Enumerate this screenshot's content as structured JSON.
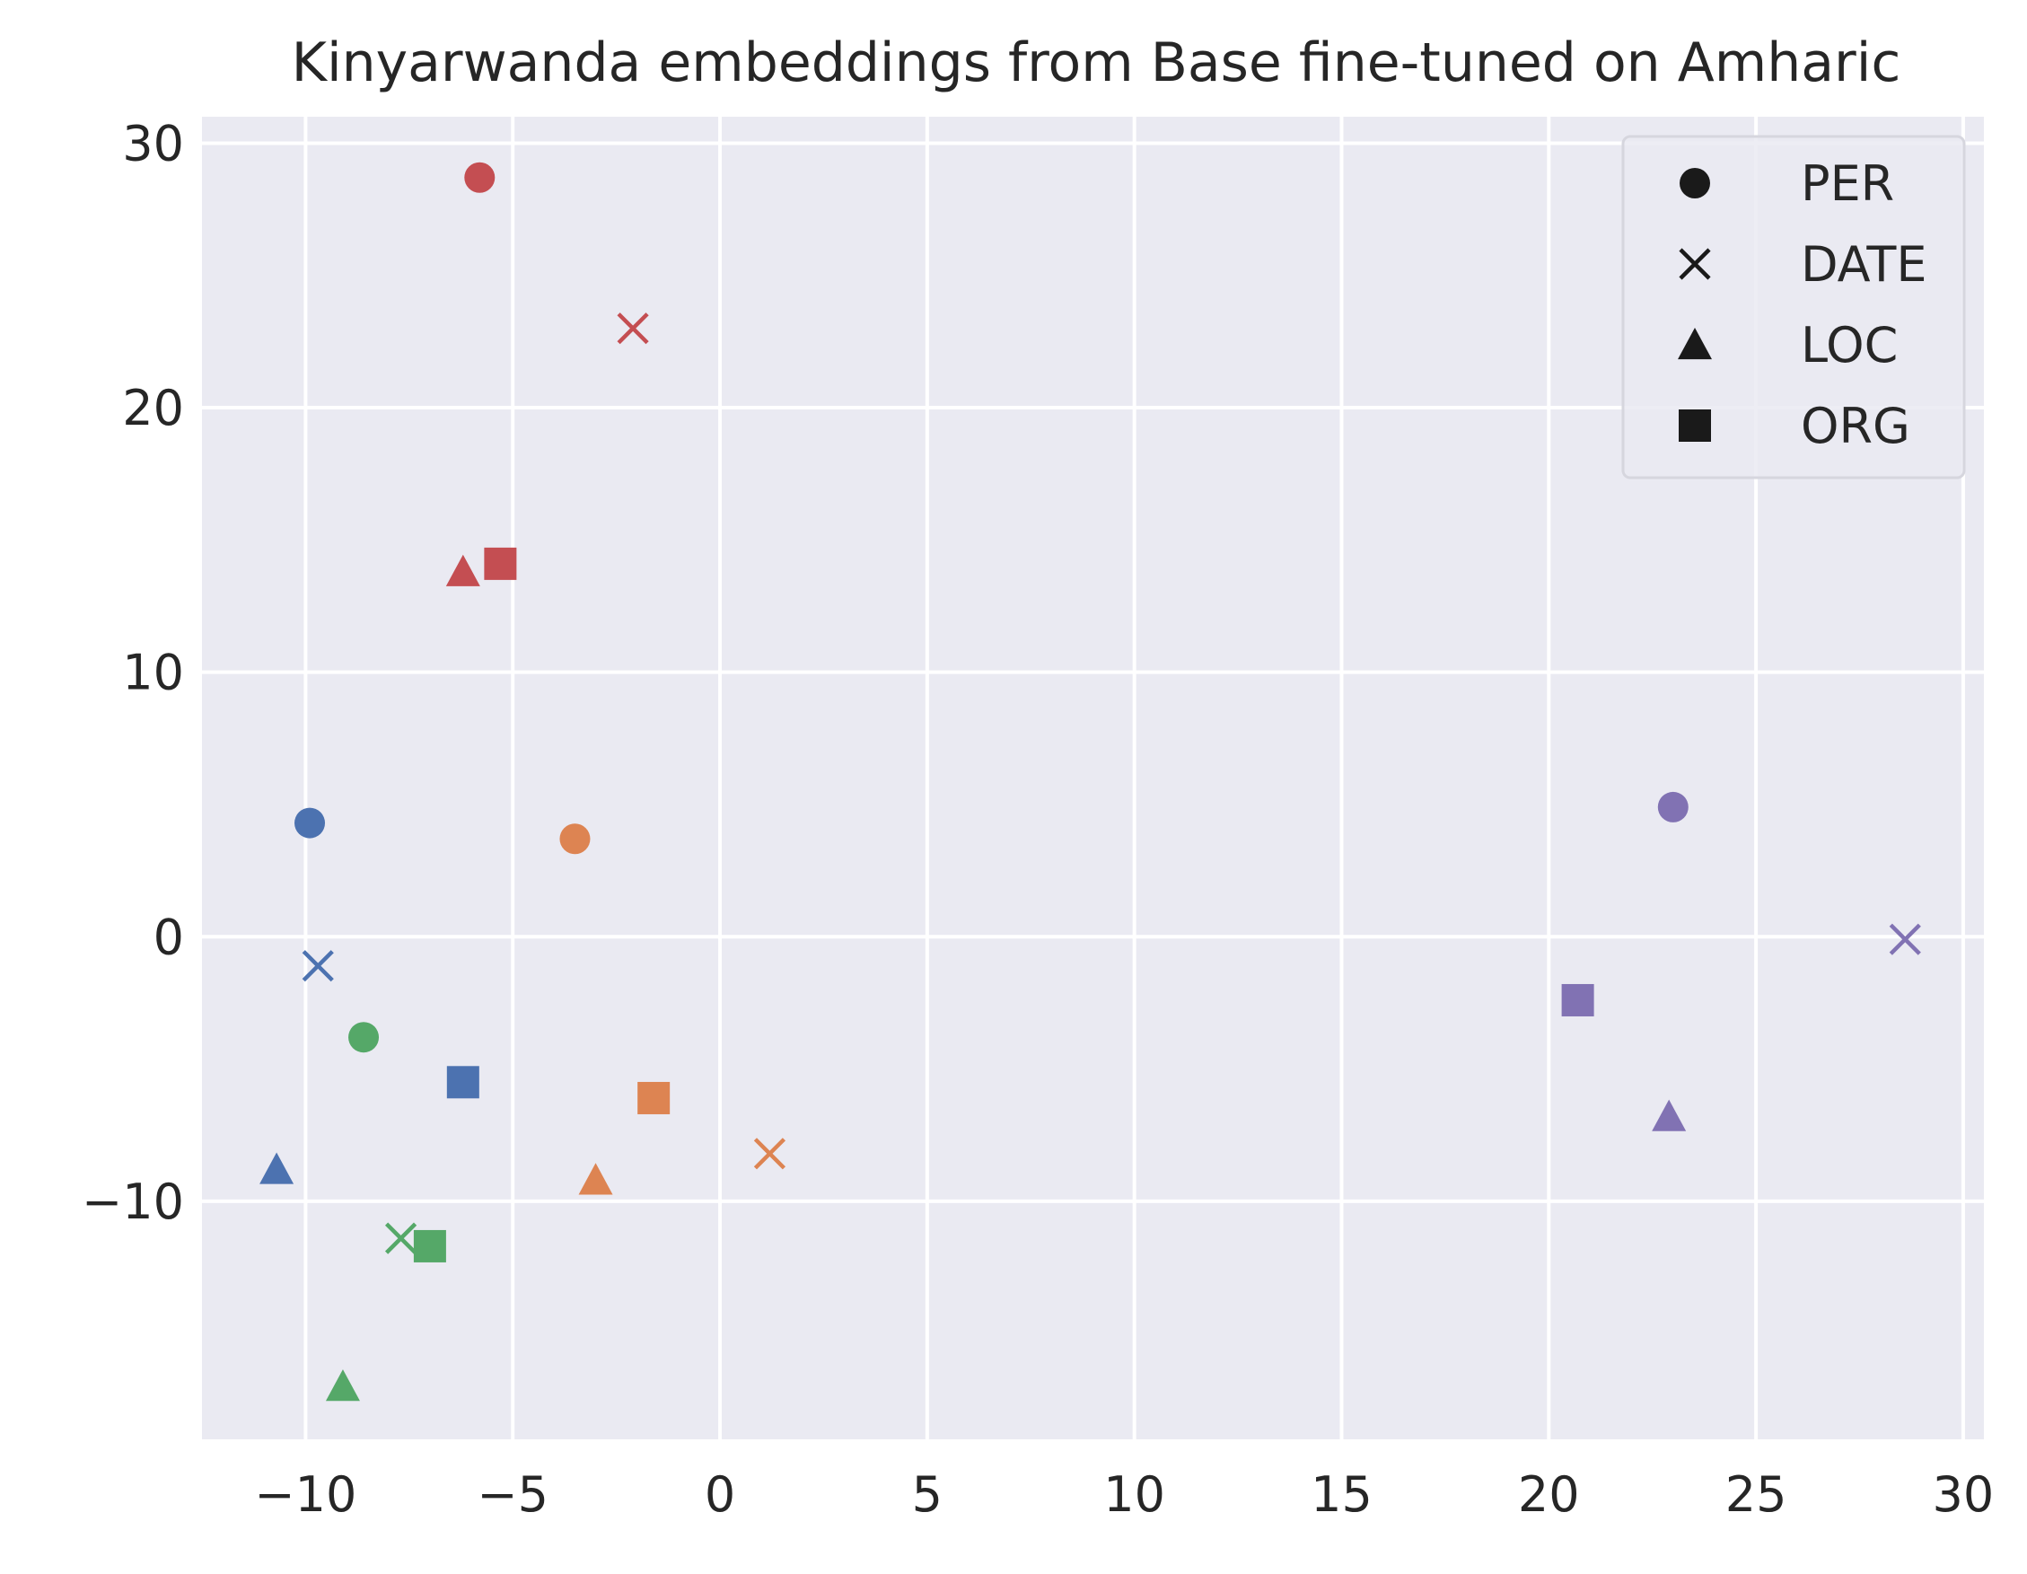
{
  "chart_data": {
    "type": "scatter",
    "title": "Kinyarwanda embeddings from Base fine-tuned on Amharic",
    "xlabel": "",
    "ylabel": "",
    "xlim": [
      -12.5,
      30.5
    ],
    "ylim": [
      -19,
      31
    ],
    "xticks": [
      -10,
      -5,
      0,
      5,
      10,
      15,
      20,
      25,
      30
    ],
    "xtick_labels": [
      "−10",
      "−5",
      "0",
      "5",
      "10",
      "15",
      "20",
      "25",
      "30"
    ],
    "yticks": [
      -10,
      0,
      10,
      20,
      30
    ],
    "ytick_labels": [
      "−10",
      "0",
      "10",
      "20",
      "30"
    ],
    "grid": true,
    "background": "#eaeaf2",
    "legend": {
      "placement": "top-right",
      "entries": [
        {
          "marker": "circle",
          "label": "PER"
        },
        {
          "marker": "x",
          "label": "DATE"
        },
        {
          "marker": "triangle",
          "label": "LOC"
        },
        {
          "marker": "square",
          "label": "ORG"
        }
      ]
    },
    "points": [
      {
        "x": -5.8,
        "y": 28.7,
        "marker": "circle",
        "color": "#c44e52"
      },
      {
        "x": -2.1,
        "y": 23.0,
        "marker": "x",
        "color": "#c44e52"
      },
      {
        "x": -6.2,
        "y": 13.8,
        "marker": "triangle",
        "color": "#c44e52"
      },
      {
        "x": -5.3,
        "y": 14.1,
        "marker": "square",
        "color": "#c44e52"
      },
      {
        "x": -9.9,
        "y": 4.3,
        "marker": "circle",
        "color": "#4c72b0"
      },
      {
        "x": -9.7,
        "y": -1.1,
        "marker": "x",
        "color": "#4c72b0"
      },
      {
        "x": -10.7,
        "y": -8.8,
        "marker": "triangle",
        "color": "#4c72b0"
      },
      {
        "x": -6.2,
        "y": -5.5,
        "marker": "square",
        "color": "#4c72b0"
      },
      {
        "x": -3.5,
        "y": 3.7,
        "marker": "circle",
        "color": "#dd8452"
      },
      {
        "x": 1.2,
        "y": -8.2,
        "marker": "x",
        "color": "#dd8452"
      },
      {
        "x": -3.0,
        "y": -9.2,
        "marker": "triangle",
        "color": "#dd8452"
      },
      {
        "x": -1.6,
        "y": -6.1,
        "marker": "square",
        "color": "#dd8452"
      },
      {
        "x": -8.6,
        "y": -3.8,
        "marker": "circle",
        "color": "#55a868"
      },
      {
        "x": -7.7,
        "y": -11.4,
        "marker": "x",
        "color": "#55a868"
      },
      {
        "x": -9.1,
        "y": -17.0,
        "marker": "triangle",
        "color": "#55a868"
      },
      {
        "x": -7.0,
        "y": -11.7,
        "marker": "square",
        "color": "#55a868"
      },
      {
        "x": 23.0,
        "y": 4.9,
        "marker": "circle",
        "color": "#8172b3"
      },
      {
        "x": 28.6,
        "y": -0.1,
        "marker": "x",
        "color": "#8172b3"
      },
      {
        "x": 22.9,
        "y": -6.8,
        "marker": "triangle",
        "color": "#8172b3"
      },
      {
        "x": 20.7,
        "y": -2.4,
        "marker": "square",
        "color": "#8172b3"
      }
    ]
  }
}
